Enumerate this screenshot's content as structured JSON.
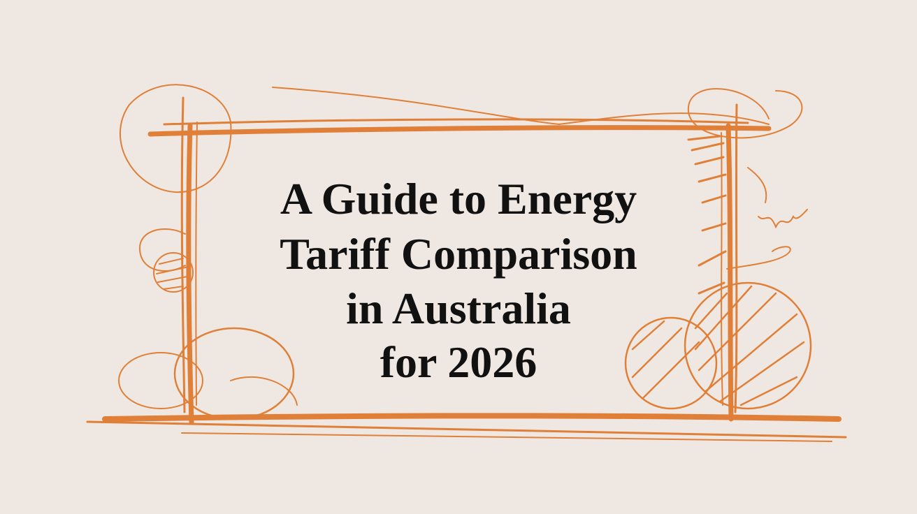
{
  "title": {
    "lines": [
      "A Guide to Energy",
      "Tariff Comparison",
      "in Australia",
      "for 2026"
    ]
  }
}
